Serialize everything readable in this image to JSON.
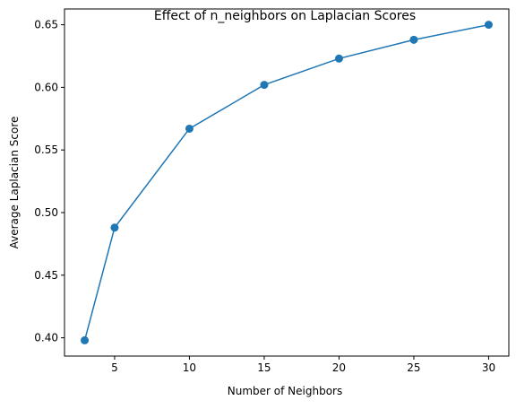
{
  "chart_data": {
    "type": "line",
    "title": "Effect of n_neighbors on Laplacian Scores",
    "xlabel": "Number of Neighbors",
    "ylabel": "Average Laplacian Score",
    "x": [
      3,
      5,
      10,
      15,
      20,
      25,
      30
    ],
    "series": [
      {
        "values": [
          0.398,
          0.488,
          0.567,
          0.602,
          0.623,
          0.638,
          0.65
        ],
        "color": "#1f77b4",
        "marker": "circle"
      }
    ],
    "xlim": [
      1.65,
      31.35
    ],
    "ylim": [
      0.3854,
      0.6626
    ],
    "xticks": [
      5,
      10,
      15,
      20,
      25,
      30
    ],
    "yticks": [
      0.4,
      0.45,
      0.5,
      0.55,
      0.6,
      0.65
    ],
    "xtick_labels": [
      "5",
      "10",
      "15",
      "20",
      "25",
      "30"
    ],
    "ytick_labels": [
      "0.40",
      "0.45",
      "0.50",
      "0.55",
      "0.60",
      "0.65"
    ],
    "grid": false,
    "legend": false
  }
}
